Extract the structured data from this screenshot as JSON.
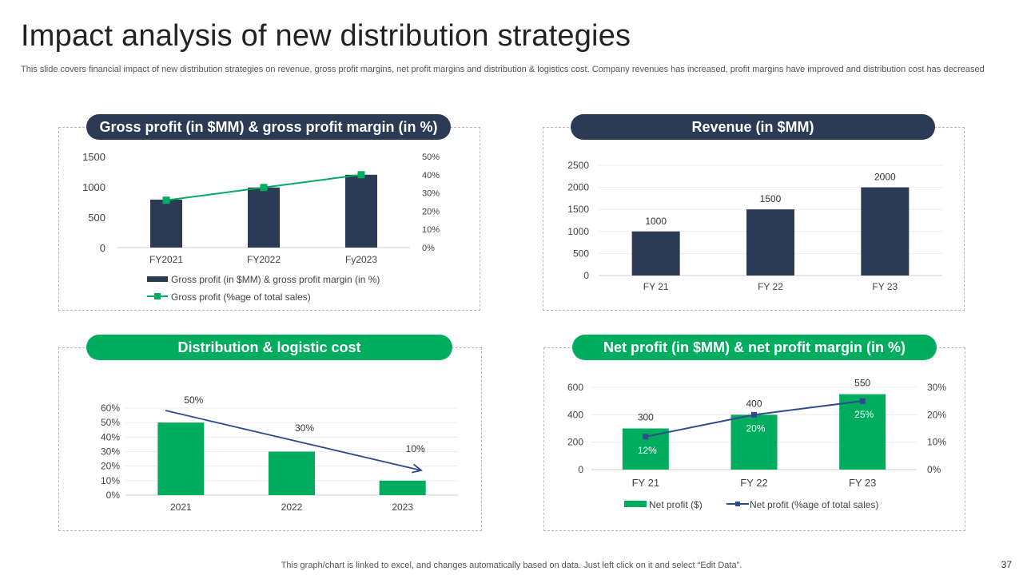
{
  "page": {
    "title": "Impact analysis of new distribution strategies",
    "subtitle": "This slide covers financial impact of new distribution strategies on revenue, gross profit margins, net profit margins and distribution & logistics cost. Company revenues has increased, profit margins have improved and distribution cost has decreased",
    "footer": "This graph/chart is linked to excel,  and changes automatically based on data. Just left click on it and select “Edit Data”.",
    "page_number": "37"
  },
  "colors": {
    "navy": "#2b3a55",
    "green": "#00ad5f",
    "line_blue": "#2f4a8f"
  },
  "chart_data": [
    {
      "id": "gross",
      "title": "Gross profit (in $MM) & gross profit margin (in %)",
      "type": "bar",
      "categories": [
        "FY2021",
        "FY2022",
        "Fy2023"
      ],
      "series": [
        {
          "name": "Gross profit (in $MM) & gross profit margin (in %)",
          "type": "bar",
          "values": [
            790,
            990,
            1200
          ]
        },
        {
          "name": "Gross profit (%age of total sales)",
          "type": "line",
          "axis": "secondary",
          "values": [
            26,
            33,
            40
          ]
        }
      ],
      "ylim": [
        0,
        1500
      ],
      "yticks": [
        "0",
        "500",
        "1000",
        "1500"
      ],
      "y2lim": [
        0,
        50
      ],
      "y2ticks": [
        "0%",
        "10%",
        "20%",
        "30%",
        "40%",
        "50%"
      ],
      "legend": "bottom"
    },
    {
      "id": "revenue",
      "title": "Revenue (in $MM)",
      "type": "bar",
      "categories": [
        "FY 21",
        "FY 22",
        "FY 23"
      ],
      "values": [
        1000,
        1500,
        2000
      ],
      "data_labels": [
        "1000",
        "1500",
        "2000"
      ],
      "ylim": [
        0,
        2500
      ],
      "yticks": [
        "0",
        "500",
        "1000",
        "1500",
        "2000",
        "2500"
      ]
    },
    {
      "id": "distribution",
      "title": "Distribution & logistic cost",
      "type": "bar",
      "categories": [
        "2021",
        "2022",
        "2023"
      ],
      "values": [
        50,
        30,
        10
      ],
      "data_labels": [
        "50%",
        "30%",
        "10%"
      ],
      "ylim": [
        0,
        60
      ],
      "yticks": [
        "0%",
        "10%",
        "20%",
        "30%",
        "40%",
        "50%",
        "60%"
      ],
      "annotation": "downward trend arrow"
    },
    {
      "id": "net",
      "title": "Net profit (in $MM) & net profit margin (in %)",
      "type": "bar",
      "categories": [
        "FY 21",
        "FY 22",
        "FY 23"
      ],
      "series": [
        {
          "name": "Net profit ($)",
          "type": "bar",
          "values": [
            300,
            400,
            550
          ],
          "data_labels": [
            "300",
            "400",
            "550"
          ]
        },
        {
          "name": "Net profit (%age of total sales)",
          "type": "line",
          "axis": "secondary",
          "values": [
            12,
            20,
            25
          ],
          "data_labels": [
            "12%",
            "20%",
            "25%"
          ]
        }
      ],
      "ylim": [
        0,
        600
      ],
      "yticks": [
        "0",
        "200",
        "400",
        "600"
      ],
      "y2lim": [
        0,
        30
      ],
      "y2ticks": [
        "0%",
        "10%",
        "20%",
        "30%"
      ],
      "legend": "bottom"
    }
  ]
}
